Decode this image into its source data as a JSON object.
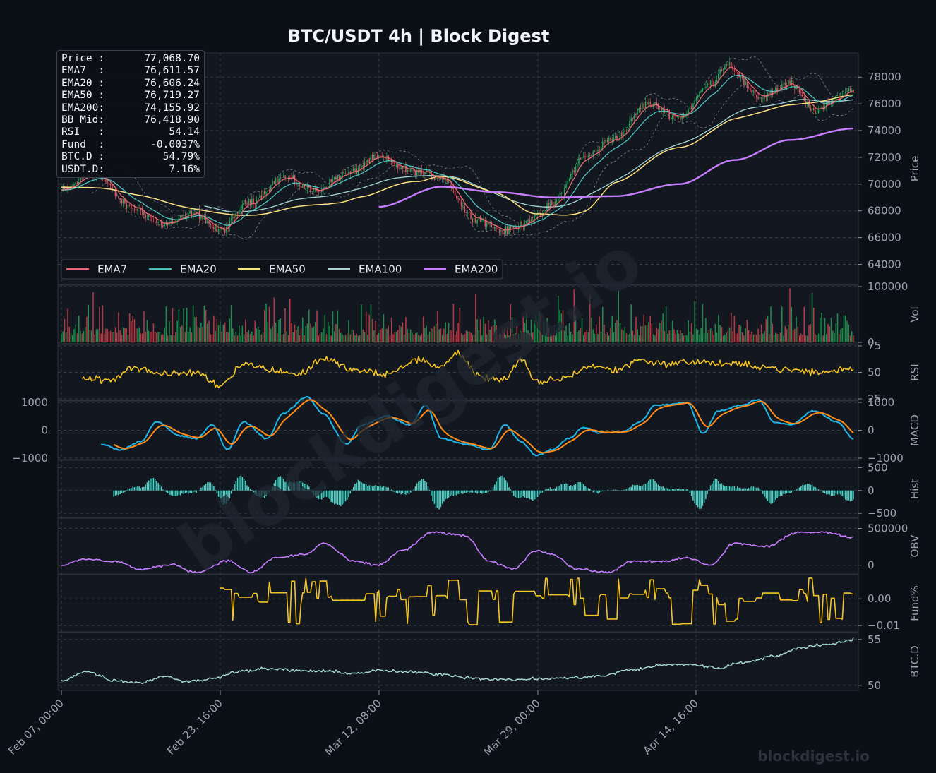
{
  "title": "BTC/USDT  4h  |  Block Digest",
  "watermark": "blockdigest.io",
  "footer_brand": "blockdigest.io",
  "colors": {
    "bg": "#0b0f16",
    "panel": "#131820",
    "grid": "#353d4a",
    "up": "#22a35a",
    "down": "#e05561",
    "ema7": "#e86b73",
    "ema20": "#4fc1bd",
    "ema50": "#ffe082",
    "ema100": "#a5d6d6",
    "ema200": "#c77dff",
    "rsi": "#f4c324",
    "macd": "#1eb6e8",
    "signal": "#ff8c1a",
    "hist": "#4dd0c4",
    "obv": "#c77dff",
    "fund": "#f4c324",
    "btcd": "#a5d6d6"
  },
  "info_box": {
    "rows": [
      {
        "k": "Price :",
        "v": "77,068.70"
      },
      {
        "k": "EMA7  :",
        "v": "76,611.57"
      },
      {
        "k": "EMA20 :",
        "v": "76,606.24"
      },
      {
        "k": "EMA50 :",
        "v": "76,719.27"
      },
      {
        "k": "EMA200:",
        "v": "74,155.92"
      },
      {
        "k": "BB Mid:",
        "v": "76,418.90"
      },
      {
        "k": "RSI   :",
        "v": "54.14"
      },
      {
        "k": "Fund  :",
        "v": "-0.0037%"
      },
      {
        "k": "BTC.D :",
        "v": "54.79%"
      },
      {
        "k": "USDT.D:",
        "v": "7.16%"
      }
    ]
  },
  "chart_data": {
    "type": "line",
    "x_tick_labels": [
      "Feb 07, 00:00",
      "Feb 23, 16:00",
      "Mar 12, 08:00",
      "Mar 29, 00:00",
      "Apr 14, 16:00"
    ],
    "x_range": [
      "Feb 07, 00:00",
      "Apr 30, 00:00"
    ],
    "legend": [
      "EMA7",
      "EMA20",
      "EMA50",
      "EMA100",
      "EMA200"
    ],
    "legend_placement": "lower-left",
    "grid": true,
    "panels": [
      {
        "id": "price",
        "ylabel": "Price",
        "ylim": [
          62600,
          79700
        ],
        "yticks": [
          "64000",
          "66000",
          "68000",
          "70000",
          "72000",
          "74000",
          "76000",
          "78000"
        ],
        "close_anchors": [
          [
            0,
            69500
          ],
          [
            4,
            70800
          ],
          [
            9,
            68200
          ],
          [
            13,
            67000
          ],
          [
            17,
            67800
          ],
          [
            20,
            66500
          ],
          [
            24,
            68800
          ],
          [
            28,
            70500
          ],
          [
            32,
            69500
          ],
          [
            36,
            70800
          ],
          [
            40,
            72000
          ],
          [
            44,
            71000
          ],
          [
            48,
            70500
          ],
          [
            52,
            67500
          ],
          [
            56,
            66500
          ],
          [
            60,
            67500
          ],
          [
            62,
            68500
          ],
          [
            66,
            72000
          ],
          [
            70,
            73500
          ],
          [
            74,
            76000
          ],
          [
            78,
            75000
          ],
          [
            82,
            77500
          ],
          [
            84,
            79000
          ],
          [
            88,
            76500
          ],
          [
            92,
            77500
          ],
          [
            95,
            75500
          ],
          [
            100,
            77069
          ]
        ],
        "ema50_anchors": [
          [
            0,
            69900
          ],
          [
            10,
            69100
          ],
          [
            20,
            68000
          ],
          [
            25,
            67600
          ],
          [
            35,
            68000
          ],
          [
            38,
            68400
          ],
          [
            45,
            69700
          ],
          [
            48,
            70400
          ],
          [
            55,
            69800
          ],
          [
            60,
            67900
          ],
          [
            66,
            67200
          ],
          [
            70,
            69500
          ],
          [
            78,
            71800
          ],
          [
            85,
            73800
          ],
          [
            92,
            75300
          ],
          [
            100,
            76719
          ]
        ],
        "ema200_anchors": [
          [
            40,
            68300
          ],
          [
            48,
            69800
          ],
          [
            55,
            69400
          ],
          [
            62,
            69000
          ],
          [
            70,
            69100
          ],
          [
            78,
            70000
          ],
          [
            85,
            71800
          ],
          [
            92,
            73300
          ],
          [
            100,
            74156
          ]
        ]
      },
      {
        "id": "vol",
        "ylabel": "Vol",
        "ylim": [
          0,
          100000
        ],
        "yticks": [
          "100000",
          "0"
        ]
      },
      {
        "id": "rsi",
        "ylabel": "RSI",
        "ylim": [
          25,
          75
        ],
        "yticks": [
          "75",
          "50",
          "25"
        ],
        "anchors": [
          [
            2.5,
            45
          ],
          [
            6,
            42
          ],
          [
            9,
            55
          ],
          [
            13,
            48
          ],
          [
            17,
            50
          ],
          [
            20,
            38
          ],
          [
            23,
            58
          ],
          [
            27,
            52
          ],
          [
            30,
            48
          ],
          [
            33,
            63
          ],
          [
            37,
            52
          ],
          [
            41,
            48
          ],
          [
            45,
            62
          ],
          [
            48,
            55
          ],
          [
            50,
            68
          ],
          [
            53,
            45
          ],
          [
            56,
            44
          ],
          [
            58,
            62
          ],
          [
            60,
            40
          ],
          [
            63,
            44
          ],
          [
            67,
            56
          ],
          [
            70,
            52
          ],
          [
            73,
            62
          ],
          [
            76,
            58
          ],
          [
            80,
            60
          ],
          [
            84,
            58
          ],
          [
            88,
            56
          ],
          [
            92,
            52
          ],
          [
            96,
            50
          ],
          [
            100,
            54
          ]
        ]
      },
      {
        "id": "macd",
        "ylabel": "MACD",
        "ylim": [
          -1000,
          1000
        ],
        "yticks": [
          "1000",
          "0",
          "−1000"
        ],
        "left_yticks": [
          "1000",
          "0",
          "−1000"
        ],
        "anchors": [
          [
            5,
            -500
          ],
          [
            7.5,
            -700
          ],
          [
            10,
            -400
          ],
          [
            12,
            300
          ],
          [
            15,
            -200
          ],
          [
            17,
            -300
          ],
          [
            19,
            200
          ],
          [
            21,
            -700
          ],
          [
            23,
            300
          ],
          [
            26,
            -300
          ],
          [
            28,
            600
          ],
          [
            31,
            1200
          ],
          [
            33,
            600
          ],
          [
            36,
            -500
          ],
          [
            38,
            200
          ],
          [
            41,
            500
          ],
          [
            44,
            200
          ],
          [
            46,
            900
          ],
          [
            48,
            -300
          ],
          [
            51,
            -500
          ],
          [
            54,
            -700
          ],
          [
            56,
            200
          ],
          [
            58,
            -400
          ],
          [
            60,
            -900
          ],
          [
            62,
            -700
          ],
          [
            64,
            -300
          ],
          [
            66,
            100
          ],
          [
            68,
            -100
          ],
          [
            71,
            -50
          ],
          [
            73,
            300
          ],
          [
            75,
            900
          ],
          [
            79,
            1000
          ],
          [
            81,
            -100
          ],
          [
            83,
            700
          ],
          [
            86,
            900
          ],
          [
            88,
            1100
          ],
          [
            90,
            300
          ],
          [
            92,
            200
          ],
          [
            95,
            700
          ],
          [
            98,
            300
          ],
          [
            100,
            -300
          ]
        ]
      },
      {
        "id": "hist",
        "ylabel": "Hist",
        "ylim": [
          -560,
          630
        ],
        "yticks": [
          "500",
          "0",
          "−500"
        ]
      },
      {
        "id": "obv",
        "ylabel": "OBV",
        "ylim": [
          -100000,
          620000
        ],
        "yticks": [
          "500000",
          "0"
        ],
        "anchors": [
          [
            0,
            0
          ],
          [
            3,
            80000
          ],
          [
            7,
            50000
          ],
          [
            10,
            -60000
          ],
          [
            14,
            10000
          ],
          [
            17,
            -100000
          ],
          [
            21,
            60000
          ],
          [
            24,
            -100000
          ],
          [
            27,
            100000
          ],
          [
            31,
            150000
          ],
          [
            33,
            300000
          ],
          [
            37,
            50000
          ],
          [
            40,
            0
          ],
          [
            43,
            200000
          ],
          [
            47,
            450000
          ],
          [
            51,
            400000
          ],
          [
            54,
            50000
          ],
          [
            57,
            -50000
          ],
          [
            60,
            200000
          ],
          [
            62,
            150000
          ],
          [
            65,
            -50000
          ],
          [
            69,
            -100000
          ],
          [
            72,
            50000
          ],
          [
            76,
            50000
          ],
          [
            79,
            100000
          ],
          [
            82,
            0
          ],
          [
            85,
            300000
          ],
          [
            89,
            250000
          ],
          [
            93,
            450000
          ],
          [
            96,
            450000
          ],
          [
            100,
            380000
          ]
        ]
      },
      {
        "id": "fund",
        "ylabel": "Fund%",
        "ylim": [
          -0.0118,
          0.0085
        ],
        "yticks": [
          "0.00",
          "−0.01"
        ],
        "start_at": 20
      },
      {
        "id": "btcd",
        "ylabel": "BTC.D",
        "ylim": [
          49.6,
          55.6
        ],
        "yticks": [
          "55",
          "50"
        ],
        "anchors": [
          [
            0,
            50.5
          ],
          [
            3,
            51.5
          ],
          [
            7,
            50.5
          ],
          [
            10,
            50.3
          ],
          [
            13,
            51.0
          ],
          [
            16,
            50.4
          ],
          [
            19,
            50.7
          ],
          [
            22,
            51.5
          ],
          [
            26,
            51.8
          ],
          [
            30,
            51.6
          ],
          [
            34,
            51.5
          ],
          [
            37,
            51.3
          ],
          [
            40,
            51.6
          ],
          [
            45,
            51.4
          ],
          [
            48,
            51.2
          ],
          [
            52,
            50.8
          ],
          [
            56,
            50.6
          ],
          [
            60,
            50.7
          ],
          [
            64,
            50.8
          ],
          [
            68,
            51.0
          ],
          [
            72,
            51.7
          ],
          [
            76,
            52.2
          ],
          [
            79,
            52.3
          ],
          [
            83,
            51.9
          ],
          [
            86,
            52.5
          ],
          [
            90,
            53.2
          ],
          [
            94,
            54.2
          ],
          [
            97,
            54.5
          ],
          [
            100,
            55.0
          ]
        ]
      }
    ]
  }
}
